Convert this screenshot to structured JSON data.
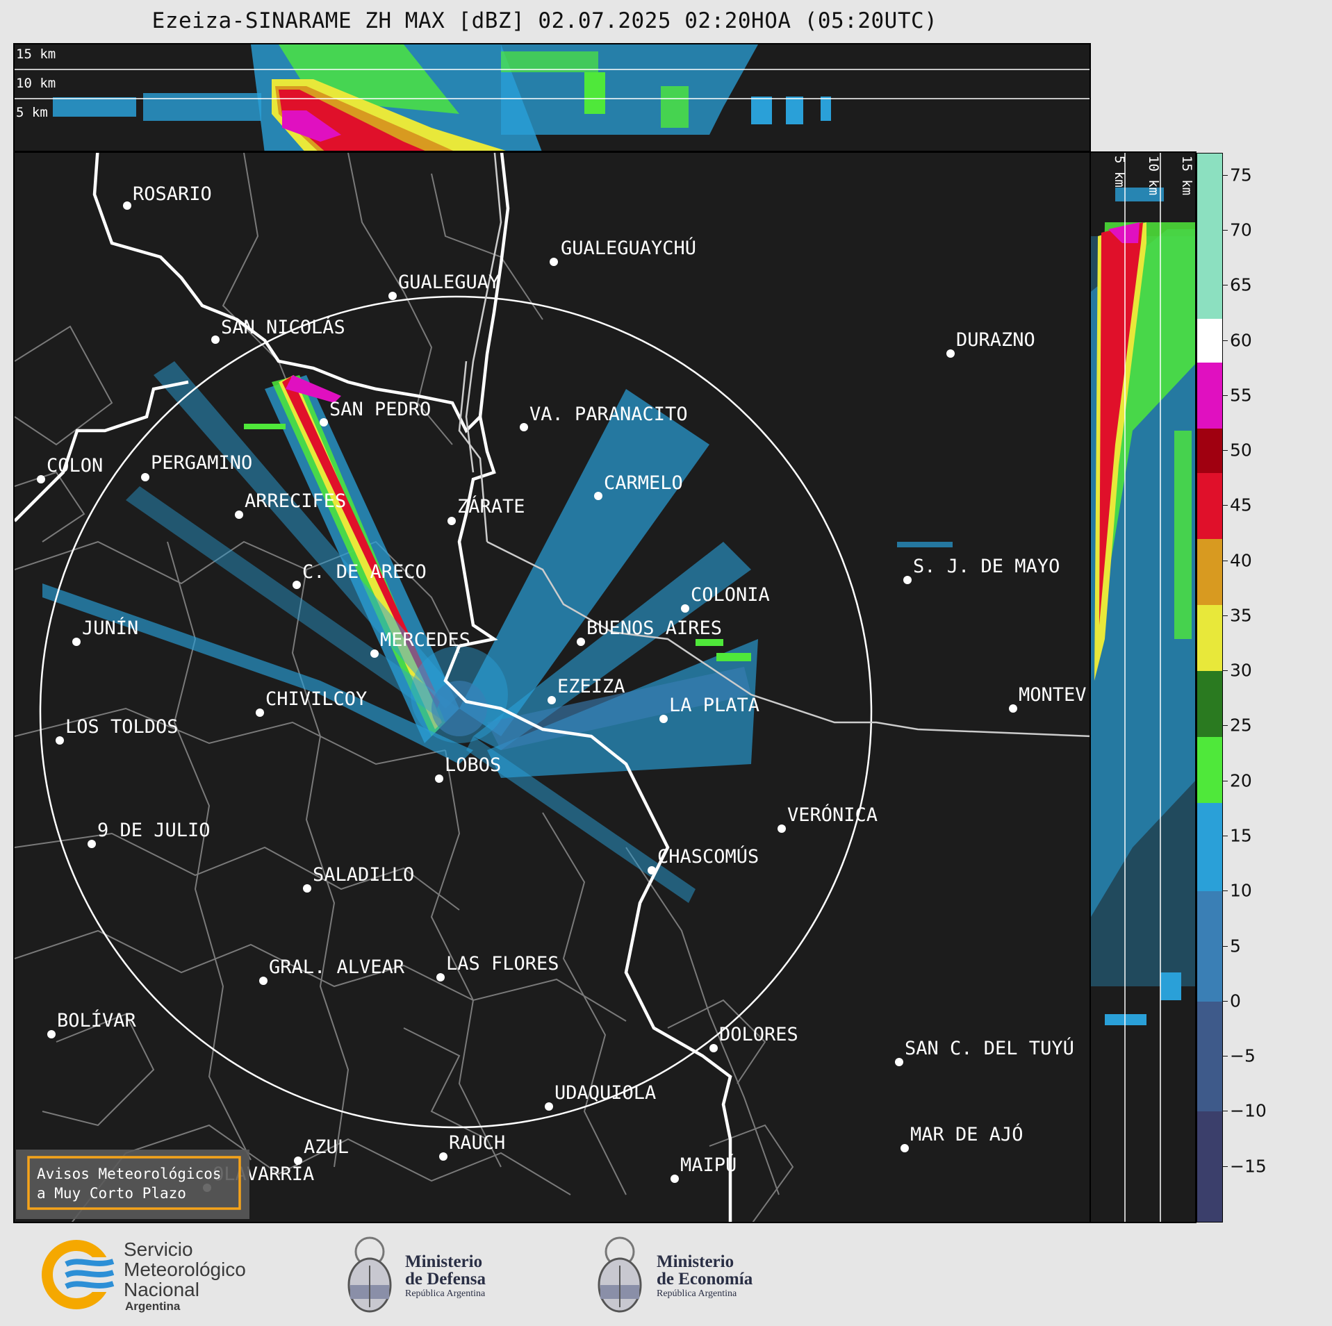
{
  "title": "Ezeiza-SINARAME ZH MAX [dBZ] 02.07.2025 02:20HOA (05:20UTC)",
  "top_panel": {
    "levels": [
      "15 km",
      "10 km",
      "5 km"
    ]
  },
  "side_panel": {
    "levels": [
      "5 km",
      "10 km",
      "15 km"
    ]
  },
  "cities": [
    {
      "name": "ROSARIO"
    },
    {
      "name": "GUALEGUAYCHÚ"
    },
    {
      "name": "GUALEGUAY"
    },
    {
      "name": "SAN NICOLÁS"
    },
    {
      "name": "DURAZNO"
    },
    {
      "name": "SAN PEDRO"
    },
    {
      "name": "VA. PARANACITO"
    },
    {
      "name": "COLON"
    },
    {
      "name": "PERGAMINO"
    },
    {
      "name": "CARMELO"
    },
    {
      "name": "ARRECIFES"
    },
    {
      "name": "ZÁRATE"
    },
    {
      "name": "C. DE ARECO"
    },
    {
      "name": "S. J. DE MAYO"
    },
    {
      "name": "COLONIA"
    },
    {
      "name": "JUNÍN"
    },
    {
      "name": "BUENOS AIRES"
    },
    {
      "name": "MERCEDES"
    },
    {
      "name": "MONTEV"
    },
    {
      "name": "EZEIZA"
    },
    {
      "name": "CHIVILCOY"
    },
    {
      "name": "LA PLATA"
    },
    {
      "name": "LOS TOLDOS"
    },
    {
      "name": "LOBOS"
    },
    {
      "name": "VERÓNICA"
    },
    {
      "name": "9 DE JULIO"
    },
    {
      "name": "CHASCOMÚS"
    },
    {
      "name": "SALADILLO"
    },
    {
      "name": "GRAL. ALVEAR"
    },
    {
      "name": "LAS FLORES"
    },
    {
      "name": "BOLÍVAR"
    },
    {
      "name": "DOLORES"
    },
    {
      "name": "SAN C. DEL TUYÚ"
    },
    {
      "name": "UDAQUIOLA"
    },
    {
      "name": "MAR DE AJÓ"
    },
    {
      "name": "AZUL"
    },
    {
      "name": "RAUCH"
    },
    {
      "name": "OLAVARRÍA"
    },
    {
      "name": "MAIPÚ"
    }
  ],
  "alert_box": {
    "line1": "Avisos Meteorológicos",
    "line2": "a Muy Corto Plazo",
    "border_color": "#f5a31a"
  },
  "colorbar": {
    "unit": "dBZ",
    "range": [
      -20,
      77
    ],
    "ticks": [
      "75",
      "70",
      "65",
      "60",
      "55",
      "50",
      "45",
      "40",
      "35",
      "30",
      "25",
      "20",
      "15",
      "10",
      "5",
      "0",
      "−5",
      "−10",
      "−15"
    ],
    "stops": [
      {
        "from": -20,
        "to": -10,
        "color": "#3b3f6b"
      },
      {
        "from": -10,
        "to": 0,
        "color": "#3e5a8a"
      },
      {
        "from": 0,
        "to": 10,
        "color": "#3a7fb5"
      },
      {
        "from": 10,
        "to": 18,
        "color": "#2aa0d8"
      },
      {
        "from": 18,
        "to": 24,
        "color": "#4fe83a"
      },
      {
        "from": 24,
        "to": 30,
        "color": "#2a7a20"
      },
      {
        "from": 30,
        "to": 36,
        "color": "#e8e83a"
      },
      {
        "from": 36,
        "to": 42,
        "color": "#d89a20"
      },
      {
        "from": 42,
        "to": 48,
        "color": "#e0102a"
      },
      {
        "from": 48,
        "to": 52,
        "color": "#a00010"
      },
      {
        "from": 52,
        "to": 58,
        "color": "#e010c0"
      },
      {
        "from": 58,
        "to": 62,
        "color": "#ffffff"
      },
      {
        "from": 62,
        "to": 77,
        "color": "#8ce0c0"
      }
    ]
  },
  "logos": {
    "smn": {
      "line1": "Servicio",
      "line2": "Meteorológico",
      "line3": "Nacional",
      "line4": "Argentina"
    },
    "defensa": {
      "line1": "Ministerio",
      "line2": "de Defensa",
      "line3": "República Argentina"
    },
    "economia": {
      "line1": "Ministerio",
      "line2": "de Economía",
      "line3": "República Argentina"
    }
  }
}
